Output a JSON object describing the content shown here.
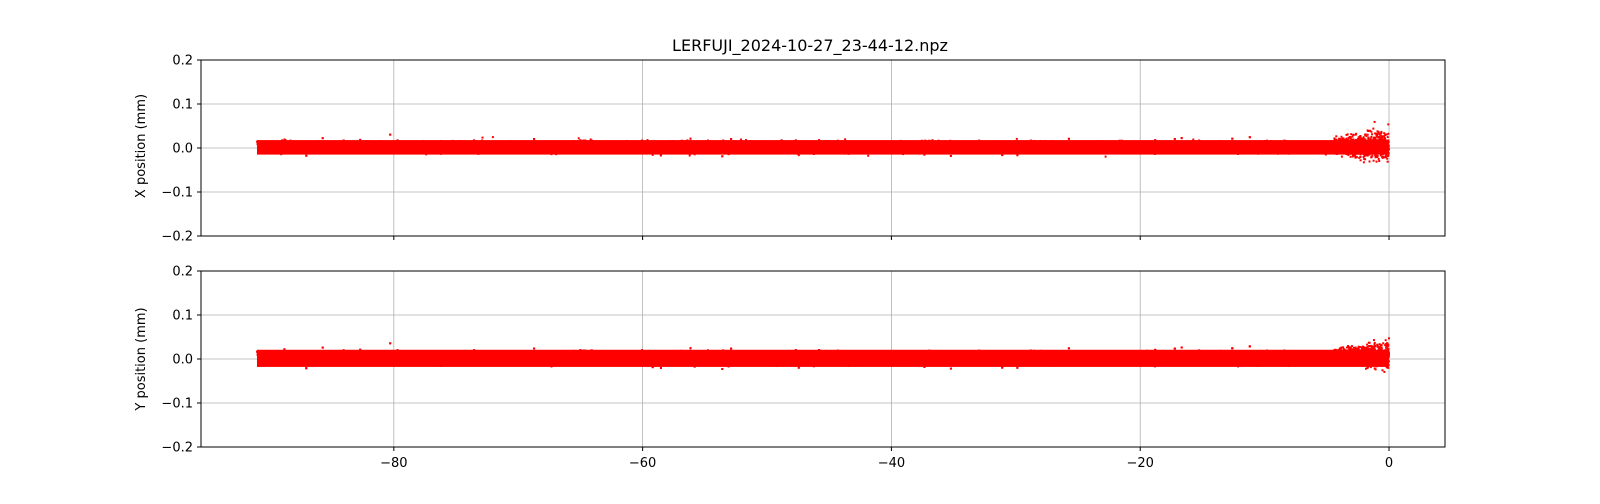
{
  "chart_data": {
    "type": "scatter",
    "title": "LERFUJI_2024-10-27_23-44-12.npz",
    "color": "#ff0000",
    "grid": true,
    "x_ticks": [
      "−80",
      "−60",
      "−40",
      "−20",
      "0"
    ],
    "x_tick_values": [
      -80,
      -60,
      -40,
      -20,
      0
    ],
    "xlim": [
      -95.5,
      4.5
    ],
    "x_data_range": [
      -91,
      0
    ],
    "y_ticks": [
      "0.2",
      "0.1",
      "0.0",
      "−0.1",
      "−0.2"
    ],
    "y_tick_values": [
      0.2,
      0.1,
      0.0,
      -0.1,
      -0.2
    ],
    "panels": [
      {
        "ylabel": "X position (mm)",
        "ylim": [
          -0.2,
          0.2
        ],
        "noise_band": [
          -0.025,
          0.03
        ],
        "end_region": {
          "x": [
            -4.5,
            0
          ],
          "y": [
            -0.07,
            0.08
          ]
        }
      },
      {
        "ylabel": "Y position (mm)",
        "ylim": [
          -0.2,
          0.2
        ],
        "noise_band": [
          -0.03,
          0.035
        ],
        "end_region": {
          "x": [
            -4.5,
            0
          ],
          "y": [
            -0.05,
            0.07
          ]
        }
      }
    ]
  }
}
